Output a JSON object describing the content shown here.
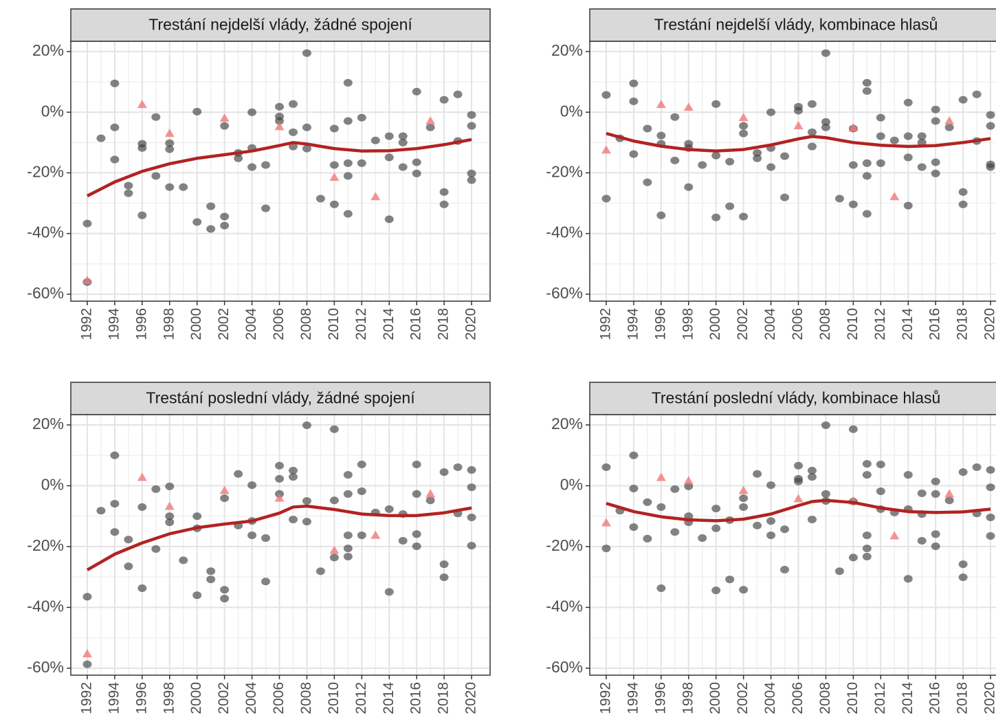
{
  "chart_data": [
    {
      "type": "scatter",
      "title": "Trestání nejdelší vlády, žádné spojení",
      "xlim": [
        1990.8,
        2021.35
      ],
      "ylim": [
        -62.3,
        23.4
      ],
      "xticks": [
        1992,
        1994,
        1996,
        1998,
        2000,
        2002,
        2004,
        2006,
        2008,
        2010,
        2012,
        2014,
        2016,
        2018,
        2020
      ],
      "yticks": [
        {
          "value": -60,
          "label": "-60%"
        },
        {
          "value": -40,
          "label": "-40%"
        },
        {
          "value": -20,
          "label": "-20%"
        },
        {
          "value": 0,
          "label": "0%"
        },
        {
          "value": 20,
          "label": "20%"
        }
      ],
      "grid": true,
      "series": [
        {
          "marker": "circle",
          "color": "#404040",
          "x": [
            1992,
            1992,
            1993,
            1994,
            1994,
            1994,
            1995,
            1995,
            1996,
            1996,
            1996,
            1997,
            1997,
            1998,
            1998,
            1998,
            1999,
            2000,
            2000,
            2001,
            2001,
            2002,
            2002,
            2002,
            2003,
            2003,
            2004,
            2004,
            2004,
            2005,
            2005,
            2006,
            2006,
            2006,
            2007,
            2007,
            2007,
            2008,
            2008,
            2008,
            2009,
            2010,
            2010,
            2010,
            2011,
            2011,
            2011,
            2011,
            2011,
            2012,
            2012,
            2013,
            2014,
            2014,
            2014,
            2015,
            2015,
            2015,
            2016,
            2016,
            2016,
            2017,
            2018,
            2018,
            2018,
            2019,
            2019,
            2020,
            2020,
            2020,
            2020
          ],
          "values": [
            -36.7,
            -56,
            -8.6,
            9.5,
            -5,
            -15.6,
            -24.2,
            -26.7,
            -10.4,
            -11.8,
            -34,
            -1.6,
            -21,
            -10.2,
            -12.2,
            -24.7,
            -24.7,
            0.2,
            -36.2,
            -31,
            -38.5,
            -4.5,
            -34.4,
            -37.4,
            -13.4,
            -15.2,
            0,
            -11.8,
            -18.1,
            -17.4,
            -31.7,
            1.8,
            -1.4,
            -2.9,
            2.7,
            -6.6,
            -11.3,
            19.5,
            -5,
            -12,
            -28.5,
            -5.4,
            -17.4,
            -30.4,
            9.7,
            -2.9,
            -16.8,
            -21,
            -33.5,
            -1.8,
            -16.8,
            -9.3,
            -7.9,
            -14.9,
            -35.3,
            -7.9,
            -10,
            -18.1,
            6.8,
            -16.5,
            -20.2,
            -5,
            4.1,
            -26.3,
            -30.4,
            5.9,
            -9.5,
            -0.9,
            -4.5,
            -20.2,
            -22.4
          ]
        },
        {
          "marker": "triangle",
          "color": "#f07878",
          "x": [
            1992,
            1996,
            1998,
            2002,
            2006,
            2010,
            2013,
            2017
          ],
          "values": [
            -55.5,
            2.5,
            -7,
            -2,
            -4.8,
            -21.5,
            -27.9,
            -2.9
          ]
        },
        {
          "marker": "line",
          "color": "#b22222",
          "x": [
            1992,
            1994,
            1996,
            1998,
            2000,
            2002,
            2004,
            2006,
            2007,
            2008,
            2010,
            2012,
            2014,
            2016,
            2018,
            2020
          ],
          "values": [
            -27.6,
            -23,
            -19.5,
            -17,
            -15.2,
            -14,
            -12.8,
            -11,
            -10,
            -10.5,
            -12,
            -12.8,
            -12.7,
            -12,
            -10.7,
            -9
          ]
        }
      ]
    },
    {
      "type": "scatter",
      "title": "Trestání nejdelší vlády, kombinace hlasů",
      "xlim": [
        1990.8,
        2021.35
      ],
      "ylim": [
        -62.3,
        23.4
      ],
      "xticks": [
        1992,
        1994,
        1996,
        1998,
        2000,
        2002,
        2004,
        2006,
        2008,
        2010,
        2012,
        2014,
        2016,
        2018,
        2020
      ],
      "yticks": [
        {
          "value": -60,
          "label": "-60%"
        },
        {
          "value": -40,
          "label": "-40%"
        },
        {
          "value": -20,
          "label": "-20%"
        },
        {
          "value": 0,
          "label": "0%"
        },
        {
          "value": 20,
          "label": "20%"
        }
      ],
      "grid": true,
      "series": [
        {
          "marker": "circle",
          "color": "#404040",
          "x": [
            1992,
            1992,
            1993,
            1994,
            1994,
            1994,
            1995,
            1995,
            1996,
            1996,
            1996,
            1997,
            1997,
            1998,
            1998,
            1998,
            1999,
            2000,
            2000,
            2000,
            2001,
            2001,
            2002,
            2002,
            2002,
            2003,
            2003,
            2004,
            2004,
            2004,
            2005,
            2005,
            2006,
            2006,
            2007,
            2007,
            2007,
            2008,
            2008,
            2008,
            2009,
            2010,
            2010,
            2010,
            2011,
            2011,
            2011,
            2011,
            2011,
            2012,
            2012,
            2012,
            2013,
            2014,
            2014,
            2014,
            2014,
            2015,
            2015,
            2015,
            2016,
            2016,
            2016,
            2016,
            2017,
            2018,
            2018,
            2018,
            2019,
            2019,
            2020,
            2020,
            2020,
            2020
          ],
          "values": [
            5.7,
            -28.5,
            -8.6,
            9.5,
            3.6,
            -13.8,
            -5.4,
            -23.1,
            -7.7,
            -10.4,
            -34,
            -1.6,
            -15.9,
            -10.4,
            -11.8,
            -24.7,
            -17.4,
            2.7,
            -14.3,
            -34.7,
            -16.3,
            -31,
            -4.5,
            -7,
            -34.4,
            -13.4,
            -15.2,
            0,
            -11.8,
            -18.1,
            -14.5,
            -28.1,
            1.8,
            0.5,
            2.7,
            -6.6,
            -11.3,
            19.5,
            -3.2,
            -5,
            -28.5,
            -5.4,
            -17.4,
            -30.4,
            9.7,
            7,
            -16.8,
            -21,
            -33.5,
            -1.8,
            -7.9,
            -16.8,
            -9.3,
            3.2,
            -7.9,
            -14.9,
            -30.8,
            -7.9,
            -10,
            -18.1,
            0.9,
            -2.9,
            -16.5,
            -20.2,
            -5,
            4.1,
            -26.3,
            -30.4,
            5.9,
            -9.5,
            -0.9,
            -4.5,
            -17.2,
            -18.1
          ]
        },
        {
          "marker": "triangle",
          "color": "#f07878",
          "x": [
            1992,
            1996,
            1998,
            2002,
            2006,
            2010,
            2013,
            2017
          ],
          "values": [
            -12.5,
            2.5,
            1.6,
            -1.8,
            -4.5,
            -5.2,
            -27.9,
            -2.9
          ]
        },
        {
          "marker": "line",
          "color": "#b22222",
          "x": [
            1992,
            1994,
            1996,
            1998,
            2000,
            2002,
            2004,
            2006,
            2007,
            2008,
            2010,
            2012,
            2014,
            2016,
            2018,
            2020
          ],
          "values": [
            -7,
            -9.5,
            -11.2,
            -12.3,
            -12.8,
            -12.3,
            -10.8,
            -8.8,
            -8,
            -8.4,
            -10,
            -10.9,
            -11.3,
            -11,
            -10,
            -8.7
          ]
        }
      ]
    },
    {
      "type": "scatter",
      "title": "Trestání poslední vlády, žádné spojení",
      "xlim": [
        1990.8,
        2021.35
      ],
      "ylim": [
        -62.3,
        23.4
      ],
      "xticks": [
        1992,
        1994,
        1996,
        1998,
        2000,
        2002,
        2004,
        2006,
        2008,
        2010,
        2012,
        2014,
        2016,
        2018,
        2020
      ],
      "yticks": [
        {
          "value": -60,
          "label": "-60%"
        },
        {
          "value": -40,
          "label": "-40%"
        },
        {
          "value": -20,
          "label": "-20%"
        },
        {
          "value": 0,
          "label": "0%"
        },
        {
          "value": 20,
          "label": "20%"
        }
      ],
      "grid": true,
      "series": [
        {
          "marker": "circle",
          "color": "#404040",
          "x": [
            1992,
            1992,
            1993,
            1994,
            1994,
            1994,
            1995,
            1995,
            1996,
            1996,
            1997,
            1997,
            1998,
            1998,
            1998,
            1999,
            2000,
            2000,
            2000,
            2001,
            2001,
            2002,
            2002,
            2002,
            2003,
            2003,
            2004,
            2004,
            2004,
            2005,
            2005,
            2006,
            2006,
            2006,
            2007,
            2007,
            2007,
            2008,
            2008,
            2008,
            2009,
            2010,
            2010,
            2010,
            2011,
            2011,
            2011,
            2011,
            2011,
            2012,
            2012,
            2012,
            2013,
            2014,
            2014,
            2015,
            2015,
            2016,
            2016,
            2016,
            2016,
            2017,
            2018,
            2018,
            2018,
            2019,
            2019,
            2020,
            2020,
            2020,
            2020
          ],
          "values": [
            -36.5,
            -58.7,
            -8.2,
            10,
            -5.9,
            -15.2,
            -17.7,
            -26.5,
            -7,
            -33.7,
            -1.1,
            -20.8,
            -0.2,
            -10,
            -12,
            -24.5,
            -10,
            -14,
            -36,
            -28.1,
            -30.8,
            -4.1,
            -34.2,
            -37.1,
            3.9,
            -13.1,
            0.2,
            -11.6,
            -16.3,
            -17.2,
            -31.5,
            6.6,
            2.3,
            -2.7,
            5,
            2.9,
            -11.1,
            19.9,
            -5,
            -11.8,
            -28.1,
            18.6,
            -4.8,
            -23.6,
            3.6,
            -2.7,
            -16.3,
            -20.6,
            -23.3,
            7,
            -1.8,
            -16.3,
            -8.8,
            -7.7,
            -34.9,
            -9.3,
            -18.1,
            7,
            -2.7,
            -15.9,
            -19.9,
            -4.8,
            4.5,
            -25.8,
            -30.1,
            6.1,
            -9.1,
            5.2,
            -0.5,
            -10.4,
            -19.7
          ]
        },
        {
          "marker": "triangle",
          "color": "#f07878",
          "x": [
            1992,
            1996,
            1998,
            2002,
            2006,
            2010,
            2013,
            2017
          ],
          "values": [
            -55.3,
            2.7,
            -6.8,
            -1.6,
            -4.1,
            -21.3,
            -16.3,
            -2.7
          ]
        },
        {
          "marker": "line",
          "color": "#b22222",
          "x": [
            1992,
            1994,
            1996,
            1998,
            2000,
            2002,
            2004,
            2006,
            2007,
            2008,
            2010,
            2012,
            2014,
            2016,
            2018,
            2020
          ],
          "values": [
            -27.7,
            -22.5,
            -18.8,
            -15.8,
            -13.8,
            -12.6,
            -11.6,
            -9,
            -7,
            -6.7,
            -7.8,
            -9.3,
            -9.8,
            -9.8,
            -8.9,
            -7.3
          ]
        }
      ]
    },
    {
      "type": "scatter",
      "title": "Trestání poslední vlády, kombinace hlasů",
      "xlim": [
        1990.8,
        2021.35
      ],
      "ylim": [
        -62.3,
        23.4
      ],
      "xticks": [
        1992,
        1994,
        1996,
        1998,
        2000,
        2002,
        2004,
        2006,
        2008,
        2010,
        2012,
        2014,
        2016,
        2018,
        2020
      ],
      "yticks": [
        {
          "value": -60,
          "label": "-60%"
        },
        {
          "value": -40,
          "label": "-40%"
        },
        {
          "value": -20,
          "label": "-20%"
        },
        {
          "value": 0,
          "label": "0%"
        },
        {
          "value": 20,
          "label": "20%"
        }
      ],
      "grid": true,
      "series": [
        {
          "marker": "circle",
          "color": "#404040",
          "x": [
            1992,
            1992,
            1993,
            1994,
            1994,
            1994,
            1995,
            1995,
            1996,
            1996,
            1997,
            1997,
            1998,
            1998,
            1998,
            1999,
            2000,
            2000,
            2000,
            2001,
            2001,
            2002,
            2002,
            2002,
            2003,
            2003,
            2004,
            2004,
            2004,
            2005,
            2005,
            2006,
            2006,
            2006,
            2007,
            2007,
            2007,
            2008,
            2008,
            2008,
            2009,
            2010,
            2010,
            2010,
            2011,
            2011,
            2011,
            2011,
            2011,
            2012,
            2012,
            2012,
            2013,
            2014,
            2014,
            2014,
            2015,
            2015,
            2015,
            2016,
            2016,
            2016,
            2016,
            2017,
            2018,
            2018,
            2018,
            2019,
            2019,
            2020,
            2020,
            2020,
            2020
          ],
          "values": [
            6.1,
            -20.6,
            -8.2,
            10,
            -0.9,
            -13.6,
            -5.4,
            -17.4,
            -7,
            -33.7,
            -1.1,
            -15.2,
            -0.2,
            -10,
            -12,
            -17.2,
            -7.5,
            -14,
            -34.4,
            -11.3,
            -30.8,
            -4.1,
            -7,
            -34.2,
            3.9,
            -13.1,
            0.2,
            -11.6,
            -16.3,
            -14.3,
            -27.6,
            6.6,
            2.3,
            1.4,
            5,
            2.9,
            -11.1,
            19.9,
            -2.7,
            -5,
            -28.1,
            18.6,
            -5.2,
            -23.6,
            7.2,
            3.6,
            -16.3,
            -20.6,
            -23.3,
            7,
            -1.8,
            -7.7,
            -8.8,
            3.6,
            -7.7,
            -30.6,
            -2.5,
            -9.3,
            -18.1,
            1.4,
            -2.7,
            -15.9,
            -19.9,
            -4.8,
            4.5,
            -25.8,
            -30.1,
            6.1,
            -9.1,
            5.2,
            -0.5,
            -10.4,
            -16.5
          ]
        },
        {
          "marker": "triangle",
          "color": "#f07878",
          "x": [
            1992,
            1996,
            1998,
            2002,
            2006,
            2010,
            2013,
            2017
          ],
          "values": [
            -12.2,
            2.7,
            1.6,
            -1.6,
            -4.3,
            -5,
            -16.5,
            -2.7
          ]
        },
        {
          "marker": "line",
          "color": "#b22222",
          "x": [
            1992,
            1994,
            1996,
            1998,
            2000,
            2002,
            2004,
            2006,
            2007,
            2008,
            2010,
            2012,
            2014,
            2016,
            2018,
            2020
          ],
          "values": [
            -5.8,
            -8.5,
            -10.2,
            -11.2,
            -11.5,
            -11,
            -9.3,
            -6.5,
            -5.2,
            -4.8,
            -5.5,
            -7.3,
            -8.5,
            -8.8,
            -8.6,
            -7.7
          ]
        }
      ]
    }
  ]
}
